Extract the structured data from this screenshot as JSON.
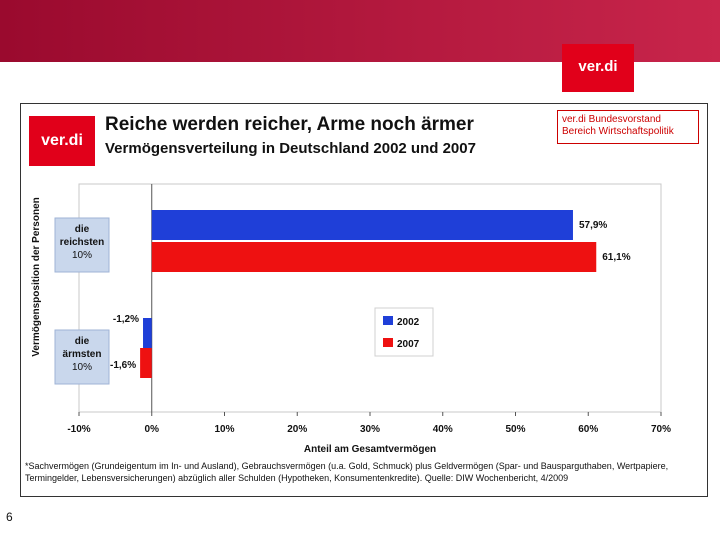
{
  "brand": {
    "logo_text": "ver.di",
    "primary_color": "#e1001a",
    "banner_color": "#b01a3e"
  },
  "slide": {
    "title": "Reiche werden reicher, Arme noch ärmer",
    "subtitle": "Vermögensverteilung in Deutschland 2002 und 2007",
    "org_line1": "ver.di Bundesvorstand",
    "org_line2": "Bereich Wirtschaftspolitik",
    "footnote": "*Sachvermögen (Grundeigentum im In- und Ausland), Gebrauchsvermögen (u.a. Gold, Schmuck) plus Geldvermögen (Spar- und Bausparguthaben, Wertpapiere, Termingelder, Lebensversicherungen) abzüglich aller Schulden (Hypotheken, Konsumentenkredite). Quelle: DIW Wochenbericht, 4/2009",
    "page_number": "6"
  },
  "chart_data": {
    "type": "bar",
    "orientation": "horizontal",
    "categories": [
      {
        "lines": [
          "die",
          "reichsten",
          "10%"
        ]
      },
      {
        "lines": [
          "die",
          "ärmsten",
          "10%"
        ]
      }
    ],
    "series": [
      {
        "name": "2002",
        "color": "#1f3fd8",
        "values": [
          57.9,
          -1.2
        ],
        "labels": [
          "57,9%",
          "-1,2%"
        ]
      },
      {
        "name": "2007",
        "color": "#ee1111",
        "values": [
          61.1,
          -1.6
        ],
        "labels": [
          "61,1%",
          "-1,6%"
        ]
      }
    ],
    "xlim": [
      -10,
      70
    ],
    "xticks": [
      -10,
      0,
      10,
      20,
      30,
      40,
      50,
      60,
      70
    ],
    "xtick_labels": [
      "-10%",
      "0%",
      "10%",
      "20%",
      "30%",
      "40%",
      "50%",
      "60%",
      "70%"
    ],
    "xlabel": "Anteil am Gesamtvermögen",
    "ylabel": "Vermögensposition der Personen",
    "legend_position": "center-right",
    "grid": false
  }
}
